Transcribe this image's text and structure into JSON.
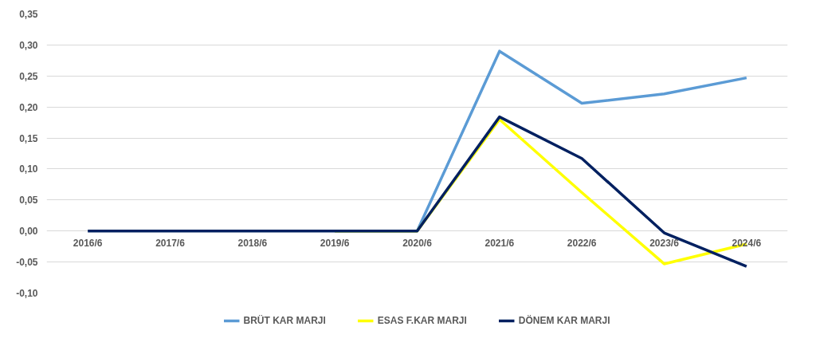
{
  "chart_data": {
    "type": "line",
    "categories": [
      "2016/6",
      "2017/6",
      "2018/6",
      "2019/6",
      "2020/6",
      "2021/6",
      "2022/6",
      "2023/6",
      "2024/6"
    ],
    "series": [
      {
        "name": "BRÜT KAR MARJI",
        "color": "#5b9bd5",
        "values": [
          null,
          null,
          null,
          0,
          0,
          0.29,
          0.206,
          0.221,
          0.247
        ]
      },
      {
        "name": "ESAS F.KAR MARJI",
        "color": "#ffff00",
        "values": [
          null,
          null,
          null,
          0,
          0,
          0.18,
          0.062,
          -0.053,
          -0.021
        ]
      },
      {
        "name": "DÖNEM KAR MARJI",
        "color": "#002060",
        "values": [
          0,
          0,
          0,
          0,
          0,
          0.184,
          0.117,
          -0.003,
          -0.057
        ]
      }
    ],
    "ylim": [
      -0.1,
      0.35
    ],
    "yticks": [
      {
        "value": -0.1,
        "label": "-0,10"
      },
      {
        "value": -0.05,
        "label": "-0,05"
      },
      {
        "value": 0,
        "label": "0,00"
      },
      {
        "value": 0.05,
        "label": "0,05"
      },
      {
        "value": 0.1,
        "label": "0,10"
      },
      {
        "value": 0.15,
        "label": "0,15"
      },
      {
        "value": 0.2,
        "label": "0,20"
      },
      {
        "value": 0.25,
        "label": "0,25"
      },
      {
        "value": 0.3,
        "label": "0,30"
      },
      {
        "value": 0.35,
        "label": "0,35"
      }
    ],
    "grid": "y",
    "legend": "bottom",
    "marker": "none",
    "line_style": "solid"
  }
}
